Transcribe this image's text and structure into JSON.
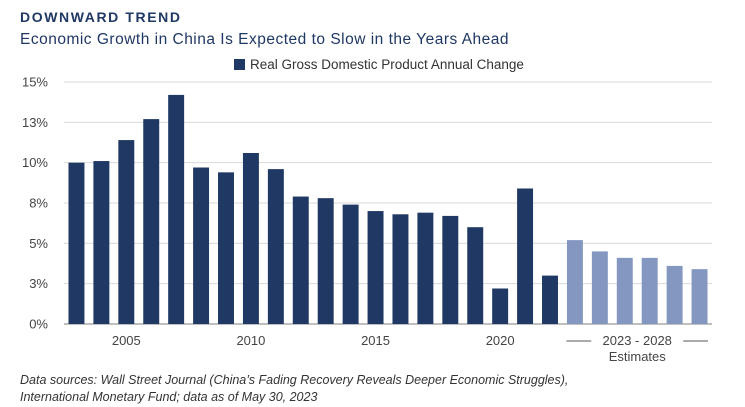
{
  "header": {
    "kicker": "DOWNWARD TREND",
    "subtitle": "Economic Growth in China Is Expected to Slow in the Years Ahead"
  },
  "source": {
    "line1": "Data sources: Wall Street Journal (China’s Fading Recovery Reveals Deeper Economic Struggles),",
    "line2": "International Monetary Fund; data as of May 30, 2023"
  },
  "colors": {
    "actual": "#1f3864",
    "estimate": "#8497c0",
    "grid": "#d9d9d9",
    "axis": "#7f7f7f"
  },
  "chart_data": {
    "type": "bar",
    "legend": {
      "label": "Real Gross Domestic Product Annual Change",
      "position": "top"
    },
    "categories": [
      2003,
      2004,
      2005,
      2006,
      2007,
      2008,
      2009,
      2010,
      2011,
      2012,
      2013,
      2014,
      2015,
      2016,
      2017,
      2018,
      2019,
      2020,
      2021,
      2022,
      2023,
      2024,
      2025,
      2026,
      2027,
      2028
    ],
    "values": [
      10.0,
      10.1,
      11.4,
      12.7,
      14.2,
      9.7,
      9.4,
      10.6,
      9.6,
      7.9,
      7.8,
      7.4,
      7.0,
      6.8,
      6.9,
      6.7,
      6.0,
      2.2,
      8.4,
      3.0,
      5.2,
      4.5,
      4.1,
      4.1,
      3.6,
      3.4
    ],
    "estimate_start": 2023,
    "estimate_label": "2023 - 2028",
    "estimate_caption": "Estimates",
    "x_tick_labels": [
      {
        "category": 2005,
        "label": "2005"
      },
      {
        "category": 2010,
        "label": "2010"
      },
      {
        "category": 2015,
        "label": "2015"
      },
      {
        "category": 2020,
        "label": "2020"
      }
    ],
    "y_ticks": [
      0,
      2.5,
      5,
      7.5,
      10,
      12.5,
      15
    ],
    "y_tick_labels": [
      "0%",
      "3%",
      "5%",
      "8%",
      "10%",
      "13%",
      "15%"
    ],
    "ylim": [
      0,
      15
    ],
    "grid": true,
    "xlabel": "",
    "ylabel": ""
  }
}
